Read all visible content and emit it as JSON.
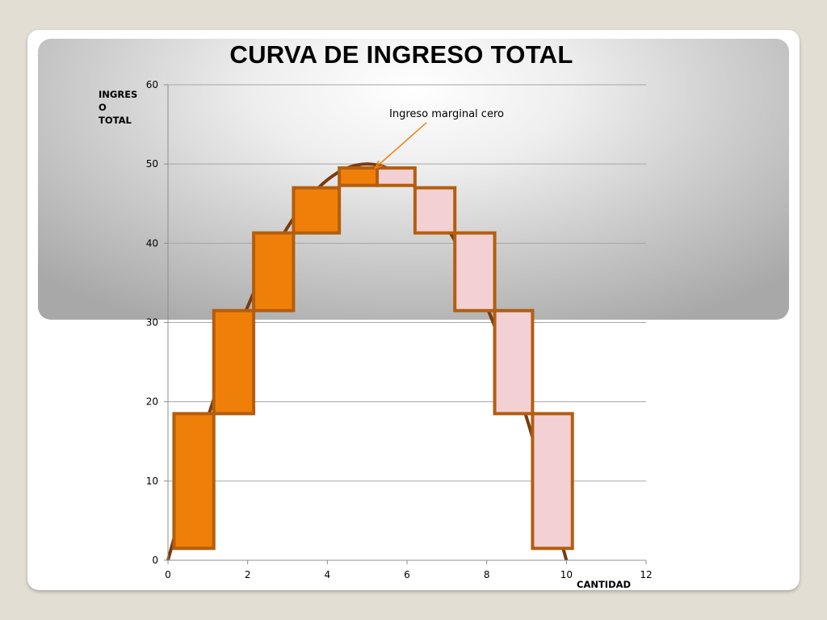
{
  "chart_data": {
    "type": "bar",
    "title": "CURVA DE INGRESO TOTAL",
    "ylabel": "INGRES\nO\nTOTAL",
    "xlabel": "CANTIDAD",
    "xlim": [
      0,
      12
    ],
    "ylim": [
      0,
      60
    ],
    "x_ticks": [
      "0",
      "2",
      "4",
      "6",
      "8",
      "10",
      "12"
    ],
    "y_ticks": [
      "0",
      "10",
      "20",
      "30",
      "40",
      "50",
      "60"
    ],
    "grid": true,
    "series": [
      {
        "curve_points": [
          {
            "x": 0,
            "y": 0
          },
          {
            "x": 1,
            "y": 18
          },
          {
            "x": 2,
            "y": 32
          },
          {
            "x": 3,
            "y": 42
          },
          {
            "x": 4,
            "y": 48
          },
          {
            "x": 5,
            "y": 50
          },
          {
            "x": 6,
            "y": 48
          },
          {
            "x": 7,
            "y": 42
          },
          {
            "x": 8,
            "y": 32
          },
          {
            "x": 9,
            "y": 18
          },
          {
            "x": 10,
            "y": 0
          }
        ]
      }
    ],
    "bars": [
      {
        "x0": 0.15,
        "x1": 1.15,
        "y0": 1.5,
        "y1": 18.5,
        "color": "#f07f09"
      },
      {
        "x0": 1.15,
        "x1": 2.15,
        "y0": 18.5,
        "y1": 31.5,
        "color": "#f07f09"
      },
      {
        "x0": 2.15,
        "x1": 3.15,
        "y0": 31.5,
        "y1": 41.3,
        "color": "#f07f09"
      },
      {
        "x0": 3.15,
        "x1": 4.3,
        "y0": 41.3,
        "y1": 47.0,
        "color": "#f07f09"
      },
      {
        "x0": 4.3,
        "x1": 5.25,
        "y0": 47.3,
        "y1": 49.5,
        "color": "#f07f09"
      },
      {
        "x0": 5.25,
        "x1": 6.2,
        "y0": 47.3,
        "y1": 49.5,
        "color": "#f2d0d4"
      },
      {
        "x0": 6.2,
        "x1": 7.2,
        "y0": 41.3,
        "y1": 47.0,
        "color": "#f2d0d4"
      },
      {
        "x0": 7.2,
        "x1": 8.2,
        "y0": 31.5,
        "y1": 41.3,
        "color": "#f2d0d4"
      },
      {
        "x0": 8.2,
        "x1": 9.15,
        "y0": 18.5,
        "y1": 31.5,
        "color": "#f2d0d4"
      },
      {
        "x0": 9.15,
        "x1": 10.15,
        "y0": 1.5,
        "y1": 18.5,
        "color": "#f2d0d4"
      }
    ],
    "annotation": {
      "text": "Ingreso marginal cero",
      "target": {
        "x": 5.2,
        "y": 49.5
      }
    },
    "colors": {
      "bar_stroke": "#b35e0f",
      "curve": "#7a3a12",
      "arrow": "#f07f09",
      "grid": "#a6a6a6"
    }
  }
}
